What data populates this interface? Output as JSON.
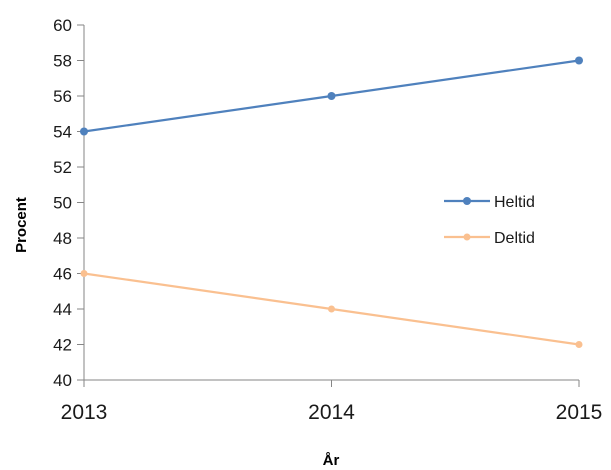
{
  "chart_data": {
    "type": "line",
    "title": "",
    "xlabel": "År",
    "ylabel": "Procent",
    "x": [
      "2013",
      "2014",
      "2015"
    ],
    "ylim": [
      40,
      60
    ],
    "yticks": [
      40,
      42,
      44,
      46,
      48,
      50,
      52,
      54,
      56,
      58,
      60
    ],
    "grid": false,
    "legend_position": "right",
    "series": [
      {
        "name": "Heltid",
        "values": [
          54,
          56,
          58
        ],
        "color": "#4f81bd",
        "marker": "circle"
      },
      {
        "name": "Deltid",
        "values": [
          46,
          44,
          42
        ],
        "color": "#fac090",
        "marker": "circle"
      }
    ]
  }
}
